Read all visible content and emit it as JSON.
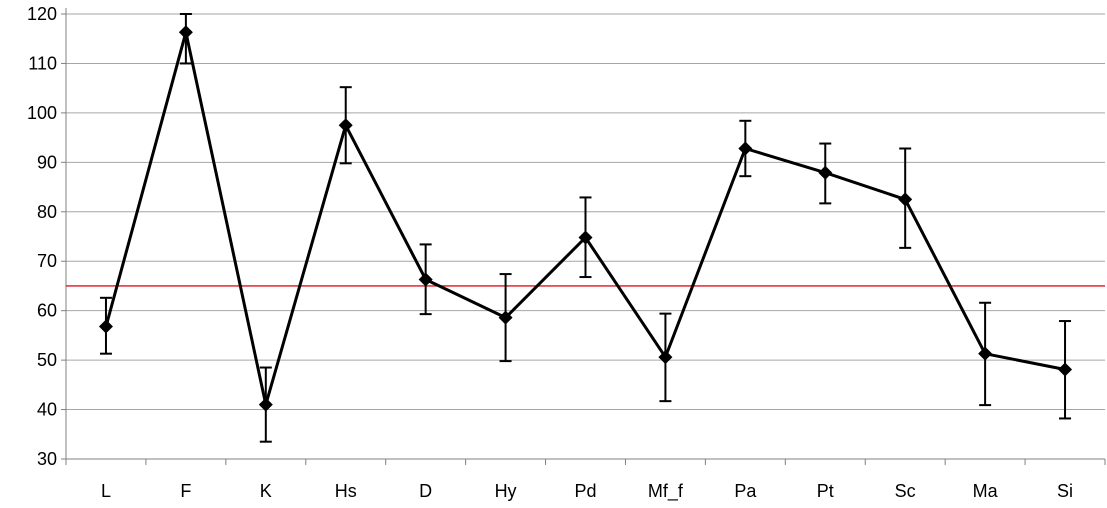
{
  "chart_data": {
    "type": "line",
    "categories": [
      "L",
      "F",
      "K",
      "Hs",
      "D",
      "Hy",
      "Pd",
      "Mf_f",
      "Pa",
      "Pt",
      "Sc",
      "Ma",
      "Si"
    ],
    "series": [
      {
        "values": [
          56.8,
          116.3,
          41.0,
          97.5,
          66.3,
          58.6,
          74.8,
          50.6,
          92.8,
          87.9,
          82.5,
          51.3,
          48.1
        ],
        "err_high": [
          62.6,
          120.0,
          48.5,
          105.2,
          73.4,
          67.4,
          82.9,
          59.4,
          98.4,
          93.8,
          92.8,
          61.6,
          57.9
        ],
        "err_low": [
          51.3,
          110.0,
          33.5,
          89.8,
          59.3,
          49.8,
          66.8,
          41.7,
          87.2,
          81.7,
          72.7,
          40.9,
          38.2
        ],
        "color": "#000000",
        "marker": "diamond"
      }
    ],
    "reference_line": {
      "value": 65,
      "color": "#e0141e"
    },
    "ylim": [
      30,
      120
    ],
    "yticks": [
      30,
      40,
      50,
      60,
      70,
      80,
      90,
      100,
      110,
      120
    ],
    "grid": true,
    "title": "",
    "xlabel": "",
    "ylabel": ""
  }
}
